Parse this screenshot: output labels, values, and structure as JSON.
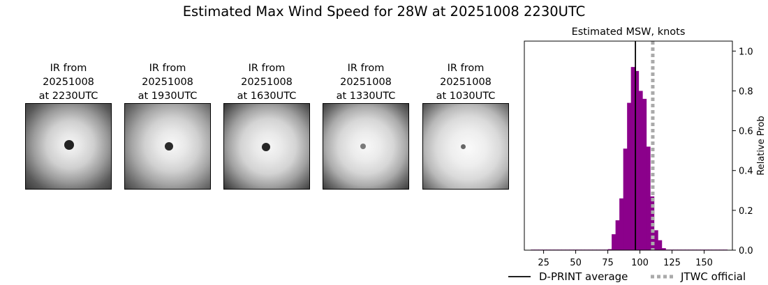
{
  "figure": {
    "suptitle": "Estimated Max Wind Speed for 28W at 20251008 2230UTC"
  },
  "panels": [
    {
      "line1": "IR from",
      "line2": "20251008",
      "line3": "at 2230UTC"
    },
    {
      "line1": "IR from",
      "line2": "20251008",
      "line3": "at 1930UTC"
    },
    {
      "line1": "IR from",
      "line2": "20251008",
      "line3": "at 1630UTC"
    },
    {
      "line1": "IR from",
      "line2": "20251008",
      "line3": "at 1330UTC"
    },
    {
      "line1": "IR from",
      "line2": "20251008",
      "line3": "at 1030UTC"
    }
  ],
  "chart_data": {
    "type": "bar",
    "title": "Estimated MSW, knots",
    "xlabel": "",
    "ylabel": "Relative Prob",
    "xlim": [
      10,
      172
    ],
    "ylim": [
      0,
      1.05
    ],
    "xticks": [
      25,
      50,
      75,
      100,
      125,
      150
    ],
    "yticks": [
      0.0,
      0.2,
      0.4,
      0.6,
      0.8,
      1.0
    ],
    "y_axis_side": "right",
    "bar_color": "#8b008b",
    "bin_width": 3,
    "bins": [
      {
        "x": 15,
        "value": 0.0
      },
      {
        "x": 18,
        "value": 0.0
      },
      {
        "x": 21,
        "value": 0.0
      },
      {
        "x": 24,
        "value": 0.0
      },
      {
        "x": 27,
        "value": 0.0
      },
      {
        "x": 30,
        "value": 0.0
      },
      {
        "x": 33,
        "value": 0.0
      },
      {
        "x": 36,
        "value": 0.0
      },
      {
        "x": 39,
        "value": 0.0
      },
      {
        "x": 42,
        "value": 0.0
      },
      {
        "x": 45,
        "value": 0.0
      },
      {
        "x": 48,
        "value": 0.0
      },
      {
        "x": 51,
        "value": 0.0
      },
      {
        "x": 54,
        "value": 0.0
      },
      {
        "x": 57,
        "value": 0.0
      },
      {
        "x": 60,
        "value": 0.0
      },
      {
        "x": 63,
        "value": 0.0
      },
      {
        "x": 66,
        "value": 0.0
      },
      {
        "x": 69,
        "value": 0.0
      },
      {
        "x": 72,
        "value": 0.0
      },
      {
        "x": 75,
        "value": 0.005
      },
      {
        "x": 78,
        "value": 0.08
      },
      {
        "x": 81,
        "value": 0.15
      },
      {
        "x": 84,
        "value": 0.26
      },
      {
        "x": 87,
        "value": 0.51
      },
      {
        "x": 90,
        "value": 0.74
      },
      {
        "x": 93,
        "value": 0.92
      },
      {
        "x": 96,
        "value": 0.9
      },
      {
        "x": 99,
        "value": 0.8
      },
      {
        "x": 102,
        "value": 0.76
      },
      {
        "x": 105,
        "value": 0.52
      },
      {
        "x": 108,
        "value": 0.27
      },
      {
        "x": 111,
        "value": 0.1
      },
      {
        "x": 114,
        "value": 0.05
      },
      {
        "x": 117,
        "value": 0.01
      },
      {
        "x": 120,
        "value": 0.0
      },
      {
        "x": 123,
        "value": 0.0
      },
      {
        "x": 126,
        "value": 0.0
      },
      {
        "x": 129,
        "value": 0.0
      },
      {
        "x": 132,
        "value": 0.0
      },
      {
        "x": 135,
        "value": 0.0
      },
      {
        "x": 138,
        "value": 0.0
      },
      {
        "x": 141,
        "value": 0.0
      },
      {
        "x": 144,
        "value": 0.0
      },
      {
        "x": 147,
        "value": 0.0
      },
      {
        "x": 150,
        "value": 0.0
      },
      {
        "x": 153,
        "value": 0.0
      },
      {
        "x": 156,
        "value": 0.0
      },
      {
        "x": 159,
        "value": 0.0
      },
      {
        "x": 162,
        "value": 0.0
      },
      {
        "x": 165,
        "value": 0.0
      }
    ],
    "reference_lines": [
      {
        "name": "D-PRINT average",
        "x": 96.5,
        "color": "#000000",
        "style": "solid"
      },
      {
        "name": "JTWC official",
        "x": 110,
        "color": "#aaaaaa",
        "style": "dotted"
      }
    ],
    "legend": {
      "placement": "bottom",
      "entries": [
        "D-PRINT average",
        "JTWC official"
      ]
    }
  }
}
